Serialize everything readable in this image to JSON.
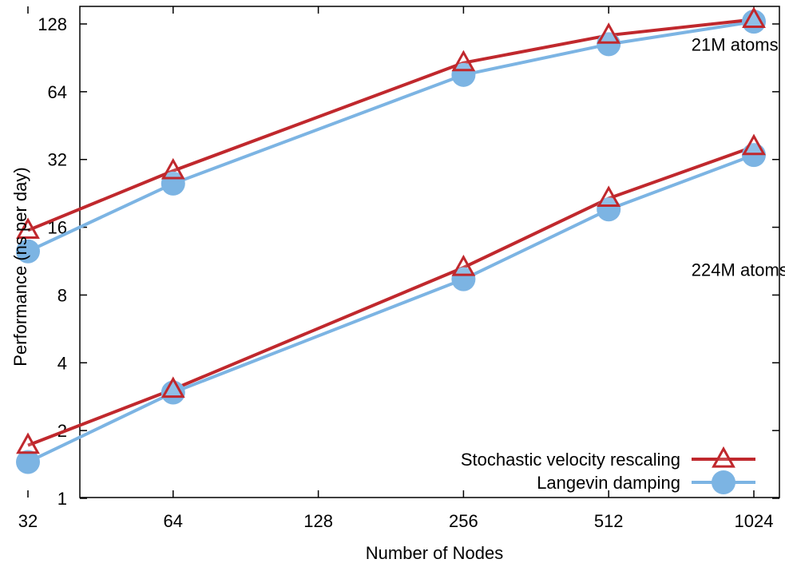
{
  "chart_data": {
    "type": "line",
    "xlabel": "Number of Nodes",
    "ylabel": "Performance (ns per day)",
    "x_scale": "log2",
    "y_scale": "log2",
    "xlim": [
      32,
      1024
    ],
    "ylim": [
      1,
      128
    ],
    "x_ticks": [
      "32",
      "64",
      "128",
      "256",
      "512",
      "1024"
    ],
    "y_ticks": [
      "1",
      "2",
      "4",
      "8",
      "16",
      "32",
      "64",
      "128"
    ],
    "grid": false,
    "legend_position": "bottom-right",
    "colors": {
      "stochastic": "#c0282d",
      "langevin": "#7cb4e3"
    },
    "series": [
      {
        "name": "Stochastic velocity rescaling",
        "group": "21M atoms",
        "marker": "triangle",
        "x": [
          32,
          64,
          256,
          512,
          1024
        ],
        "y": [
          15.5,
          28.5,
          86,
          114,
          134
        ]
      },
      {
        "name": "Langevin damping",
        "group": "21M atoms",
        "marker": "circle",
        "x": [
          32,
          64,
          256,
          512,
          1024
        ],
        "y": [
          12.5,
          25,
          76,
          104,
          131
        ]
      },
      {
        "name": "Stochastic velocity rescaling",
        "group": "224M atoms",
        "marker": "triangle",
        "x": [
          32,
          64,
          256,
          512,
          1024
        ],
        "y": [
          1.72,
          3.05,
          10.6,
          21.5,
          36.5
        ]
      },
      {
        "name": "Langevin damping",
        "group": "224M atoms",
        "marker": "circle",
        "x": [
          32,
          64,
          256,
          512,
          1024
        ],
        "y": [
          1.45,
          2.95,
          9.4,
          19.2,
          33.5
        ]
      }
    ],
    "annotations": [
      {
        "text": "21M atoms",
        "x": 760,
        "y": 104
      },
      {
        "text": "224M atoms",
        "x": 760,
        "y": 10.4
      }
    ],
    "legend": [
      {
        "label": "Stochastic velocity rescaling",
        "marker": "triangle"
      },
      {
        "label": "Langevin damping",
        "marker": "circle"
      }
    ]
  }
}
